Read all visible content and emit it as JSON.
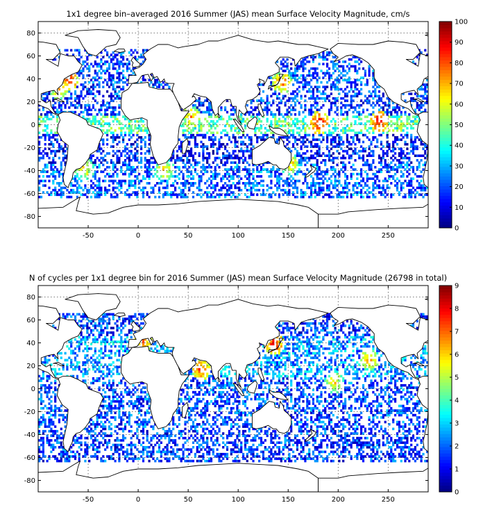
{
  "chart_data": [
    {
      "type": "heatmap",
      "title": "1x1 degree bin–averaged 2016 Summer (JAS) mean Surface Velocity Magnitude, cm/s",
      "xlabel": "",
      "ylabel": "",
      "xlim": [
        -100,
        290
      ],
      "ylim": [
        -90,
        90
      ],
      "x_ticks": [
        -50,
        0,
        50,
        100,
        150,
        200,
        250
      ],
      "y_ticks": [
        80,
        60,
        40,
        20,
        0,
        -20,
        -40,
        -60,
        -80
      ],
      "grid": true,
      "colorbar": {
        "min": 0,
        "max": 100,
        "ticks": [
          0,
          10,
          20,
          30,
          40,
          50,
          60,
          70,
          80,
          90,
          100
        ],
        "colormap": "jet"
      },
      "bands": [
        {
          "lat": [
            -65,
            -35
          ],
          "level": 0.22
        },
        {
          "lat": [
            -35,
            -8
          ],
          "level": 0.15
        },
        {
          "lat": [
            -8,
            8
          ],
          "level": 0.45
        },
        {
          "lat": [
            8,
            35
          ],
          "level": 0.18
        },
        {
          "lat": [
            35,
            66
          ],
          "level": 0.2
        }
      ],
      "hotspots": [
        {
          "lon": -70,
          "lat": 38,
          "level": 0.85
        },
        {
          "lon": -80,
          "lat": 30,
          "level": 0.75
        },
        {
          "lon": 143,
          "lat": 36,
          "level": 0.8
        },
        {
          "lon": 52,
          "lat": 6,
          "level": 0.75
        },
        {
          "lon": 180,
          "lat": 1,
          "level": 0.9
        },
        {
          "lon": 240,
          "lat": 2,
          "level": 0.9
        },
        {
          "lon": 25,
          "lat": -40,
          "level": 0.7
        },
        {
          "lon": 150,
          "lat": -35,
          "level": 0.75
        },
        {
          "lon": -55,
          "lat": -40,
          "level": 0.7
        }
      ]
    },
    {
      "type": "heatmap",
      "title": "N of cycles per 1x1 degree bin for 2016 Summer (JAS) mean Surface Velocity Magnitude (26798 in total)",
      "xlabel": "",
      "ylabel": "",
      "xlim": [
        -100,
        290
      ],
      "ylim": [
        -90,
        90
      ],
      "x_ticks": [
        -50,
        0,
        50,
        100,
        150,
        200,
        250
      ],
      "y_ticks": [
        80,
        60,
        40,
        20,
        0,
        -20,
        -40,
        -60,
        -80
      ],
      "grid": true,
      "colorbar": {
        "min": 0,
        "max": 9,
        "ticks": [
          0,
          1,
          2,
          3,
          4,
          5,
          6,
          7,
          8,
          9
        ],
        "colormap": "jet"
      },
      "bands": [
        {
          "lat": [
            -65,
            -35
          ],
          "level": 0.18
        },
        {
          "lat": [
            -35,
            10
          ],
          "level": 0.2
        },
        {
          "lat": [
            10,
            45
          ],
          "level": 0.28
        },
        {
          "lat": [
            45,
            66
          ],
          "level": 0.18
        }
      ],
      "hotspots": [
        {
          "lon": 135,
          "lat": 38,
          "level": 0.9
        },
        {
          "lon": 62,
          "lat": 16,
          "level": 0.85
        },
        {
          "lon": 3,
          "lat": 40,
          "level": 0.8
        },
        {
          "lon": 230,
          "lat": 25,
          "level": 0.75
        },
        {
          "lon": 195,
          "lat": 5,
          "level": 0.7
        }
      ]
    }
  ]
}
